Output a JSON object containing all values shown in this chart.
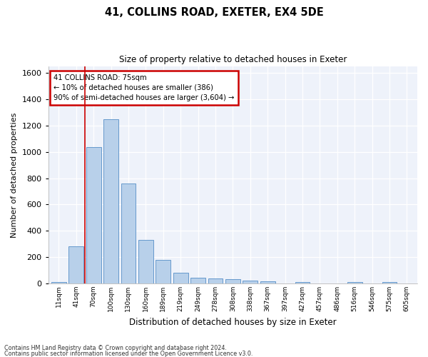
{
  "title": "41, COLLINS ROAD, EXETER, EX4 5DE",
  "subtitle": "Size of property relative to detached houses in Exeter",
  "xlabel": "Distribution of detached houses by size in Exeter",
  "ylabel": "Number of detached properties",
  "bar_color": "#b8d0ea",
  "bar_edge_color": "#6699cc",
  "highlight_color": "#cc0000",
  "background_color": "#eef2fa",
  "categories": [
    "11sqm",
    "41sqm",
    "70sqm",
    "100sqm",
    "130sqm",
    "160sqm",
    "189sqm",
    "219sqm",
    "249sqm",
    "278sqm",
    "308sqm",
    "338sqm",
    "367sqm",
    "397sqm",
    "427sqm",
    "457sqm",
    "486sqm",
    "516sqm",
    "546sqm",
    "575sqm",
    "605sqm"
  ],
  "values": [
    10,
    285,
    1035,
    1250,
    760,
    330,
    180,
    80,
    45,
    38,
    30,
    22,
    16,
    0,
    12,
    0,
    0,
    13,
    0,
    13,
    0
  ],
  "ylim": [
    0,
    1650
  ],
  "yticks": [
    0,
    200,
    400,
    600,
    800,
    1000,
    1200,
    1400,
    1600
  ],
  "annotation_title": "41 COLLINS ROAD: 75sqm",
  "annotation_line1": "← 10% of detached houses are smaller (386)",
  "annotation_line2": "90% of semi-detached houses are larger (3,604) →",
  "vline_x_index": 1.5,
  "footer1": "Contains HM Land Registry data © Crown copyright and database right 2024.",
  "footer2": "Contains public sector information licensed under the Open Government Licence v3.0."
}
